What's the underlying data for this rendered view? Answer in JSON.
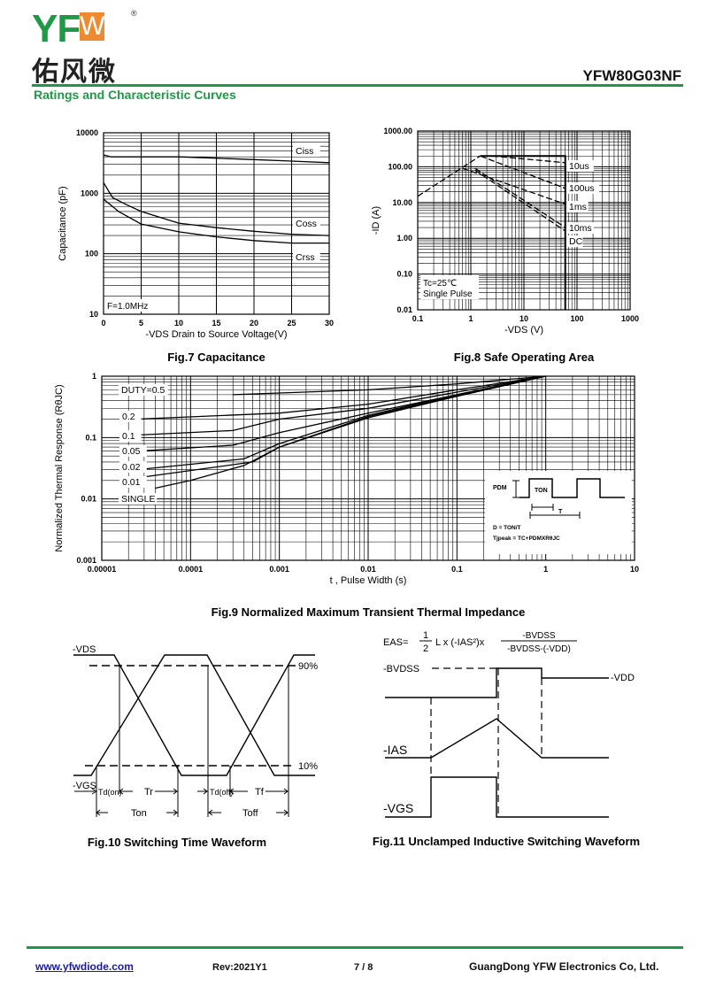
{
  "header": {
    "logo_text": "YFW",
    "logo_cn": "佑风微",
    "registered": "®",
    "part_number": "YFW80G03NF",
    "section_title": "Ratings and Characteristic Curves"
  },
  "colors": {
    "brand_green": "#1e9a46",
    "brand_orange": "#ee8a32",
    "link": "#1a1aa6"
  },
  "chart_data": [
    {
      "id": "fig7",
      "type": "line",
      "title": "Fig.7 Capacitance",
      "xlabel": "-VDS Drain to Source Voltage(V)",
      "ylabel": "Capacitance (pF)",
      "xscale": "linear",
      "yscale": "log",
      "xlim": [
        0,
        30
      ],
      "ylim": [
        10,
        10000
      ],
      "xticks": [
        "0",
        "5",
        "10",
        "15",
        "20",
        "25",
        "30"
      ],
      "yticks": [
        "10",
        "100",
        "1000",
        "10000"
      ],
      "grid": true,
      "annotation": "F=1.0MHz",
      "series": [
        {
          "name": "Ciss",
          "x": [
            0,
            1,
            5,
            10,
            15,
            20,
            25,
            30
          ],
          "y": [
            4300,
            4000,
            4000,
            4000,
            3800,
            3600,
            3400,
            3200
          ]
        },
        {
          "name": "Coss",
          "x": [
            0,
            1.2,
            3,
            5,
            10,
            15,
            20,
            25,
            30
          ],
          "y": [
            1500,
            850,
            650,
            500,
            320,
            270,
            235,
            210,
            200
          ]
        },
        {
          "name": "Crss",
          "x": [
            0,
            2,
            5,
            10,
            15,
            20,
            25,
            30
          ],
          "y": [
            800,
            500,
            310,
            230,
            190,
            165,
            150,
            150
          ]
        }
      ]
    },
    {
      "id": "fig8",
      "type": "line",
      "title": "Fig.8 Safe Operating Area",
      "xlabel": "-VDS (V)",
      "ylabel": "-ID (A)",
      "xscale": "log",
      "yscale": "log",
      "xlim": [
        0.1,
        1000
      ],
      "ylim": [
        0.01,
        1000
      ],
      "xticks": [
        "0.1",
        "1",
        "10",
        "100",
        "1000"
      ],
      "yticks": [
        "0.01",
        "0.10",
        "1.00",
        "10.00",
        "100.00",
        "1000.00"
      ],
      "grid": true,
      "annotation": [
        "Tc=25℃",
        "Single Pulse"
      ],
      "series": [
        {
          "name": "RDS(on) limit",
          "x": [
            0.1,
            1.5
          ],
          "y": [
            15,
            200
          ],
          "dashed": true,
          "unlabeled": true
        },
        {
          "name": "10us",
          "x": [
            1.5,
            60,
            60
          ],
          "y": [
            200,
            200,
            0.01
          ],
          "dashed": false
        },
        {
          "name": "10us",
          "x": [
            2.5,
            60
          ],
          "y": [
            200,
            130
          ],
          "dashed": true
        },
        {
          "name": "100us",
          "x": [
            1.5,
            60
          ],
          "y": [
            200,
            25
          ],
          "dashed": true
        },
        {
          "name": "1ms",
          "x": [
            0.7,
            60
          ],
          "y": [
            90,
            9
          ],
          "dashed": true
        },
        {
          "name": "10ms",
          "x": [
            1.2,
            60
          ],
          "y": [
            90,
            2
          ],
          "dashed": true
        },
        {
          "name": "DC",
          "x": [
            1.2,
            60
          ],
          "y": [
            80,
            1.6
          ],
          "dashed": true
        }
      ],
      "legend_labels": [
        "10us",
        "100us",
        "1ms",
        "10ms",
        "DC"
      ]
    },
    {
      "id": "fig9",
      "type": "line",
      "title": "Fig.9 Normalized Maximum Transient Thermal Impedance",
      "xlabel": "t , Pulse Width (s)",
      "ylabel": "Normalized Thermal Response (RθJC)",
      "xscale": "log",
      "yscale": "log",
      "xlim": [
        1e-05,
        10
      ],
      "ylim": [
        0.001,
        1
      ],
      "xticks": [
        "0.00001",
        "0.0001",
        "0.001",
        "0.01",
        "0.1",
        "1",
        "10"
      ],
      "yticks": [
        "0.001",
        "0.01",
        "0.1",
        "1"
      ],
      "grid": true,
      "series": [
        {
          "name": "DUTY=0.5",
          "x": [
            0.0003,
            0.01,
            0.1,
            1
          ],
          "y": [
            0.5,
            0.6,
            0.75,
            1
          ]
        },
        {
          "name": "0.2",
          "x": [
            2.5e-05,
            0.001,
            0.01,
            0.1,
            1
          ],
          "y": [
            0.2,
            0.25,
            0.35,
            0.6,
            1
          ]
        },
        {
          "name": "0.1",
          "x": [
            2.5e-05,
            0.0003,
            0.001,
            0.01,
            0.1,
            1
          ],
          "y": [
            0.11,
            0.13,
            0.2,
            0.3,
            0.55,
            1
          ]
        },
        {
          "name": "0.05",
          "x": [
            2.5e-05,
            0.0003,
            0.001,
            0.01,
            0.1,
            1
          ],
          "y": [
            0.06,
            0.075,
            0.12,
            0.25,
            0.5,
            1
          ]
        },
        {
          "name": "0.02",
          "x": [
            2.5e-05,
            0.0004,
            0.001,
            0.01,
            0.1,
            1
          ],
          "y": [
            0.03,
            0.045,
            0.08,
            0.23,
            0.5,
            1
          ]
        },
        {
          "name": "0.01",
          "x": [
            2.5e-05,
            0.0005,
            0.001,
            0.01,
            0.1,
            1
          ],
          "y": [
            0.022,
            0.04,
            0.07,
            0.22,
            0.48,
            1
          ]
        },
        {
          "name": "SINGLE",
          "x": [
            4e-05,
            0.0001,
            0.0004,
            0.001,
            0.01,
            0.1,
            1
          ],
          "y": [
            0.015,
            0.02,
            0.035,
            0.07,
            0.21,
            0.47,
            1
          ]
        }
      ],
      "inset": {
        "pdm": "PDM",
        "ton": "TON",
        "t": "T",
        "formula1": "D = TON/T",
        "formula2": "Tjpeak = TC+PDMXRθJC"
      }
    }
  ],
  "fig10": {
    "title": "Fig.10 Switching Time Waveform",
    "vds": "-VDS",
    "vgs": "-VGS",
    "p90": "90%",
    "p10": "10%",
    "td_on": "Td(on)",
    "tr": "Tr",
    "td_off": "Td(off)",
    "tf": "Tf",
    "ton": "Ton",
    "toff": "Toff"
  },
  "fig11": {
    "title": "Fig.11 Unclamped Inductive Switching Waveform",
    "formula_lhs": "EAS=",
    "half_num": "1",
    "half_den": "2",
    "formula_mid": "L x (-IAS²)x",
    "frac_num": "-BVDSS",
    "frac_den": "-BVDSS-(-VDD)",
    "bvdss": "-BVDSS",
    "vdd": "-VDD",
    "ias": "-IAS",
    "vgs": "-VGS"
  },
  "footer": {
    "website": "www.yfwdiode.com",
    "revision": "Rev:2021Y1",
    "page": "7 / 8",
    "company": "GuangDong YFW Electronics Co, Ltd."
  }
}
